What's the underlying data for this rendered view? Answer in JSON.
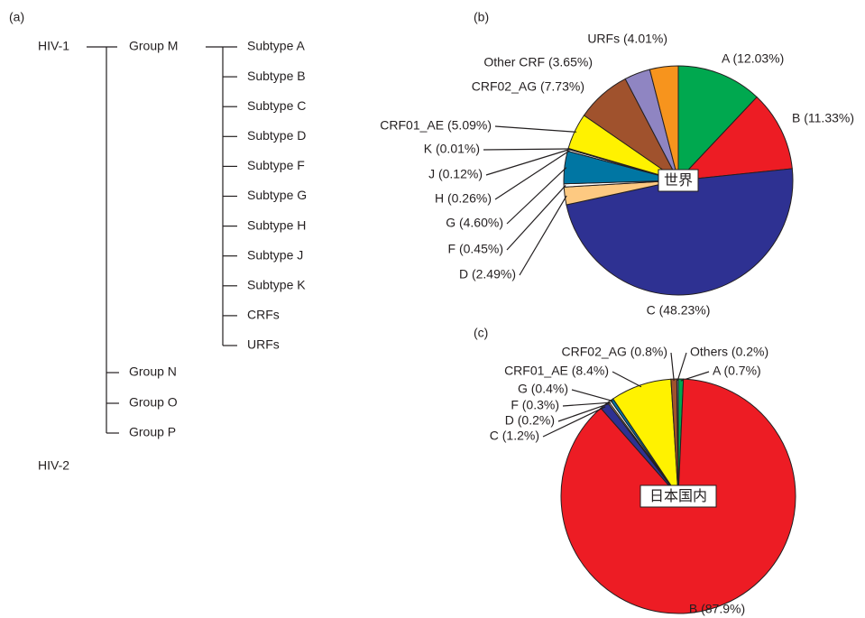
{
  "panel_a": {
    "label": "(a)",
    "tree": {
      "root": "HIV-1",
      "groups": [
        {
          "name": "Group M",
          "children": [
            "Subtype A",
            "Subtype B",
            "Subtype C",
            "Subtype D",
            "Subtype F",
            "Subtype G",
            "Subtype H",
            "Subtype J",
            "Subtype K",
            "CRFs",
            "URFs"
          ]
        },
        {
          "name": "Group N"
        },
        {
          "name": "Group O"
        },
        {
          "name": "Group P"
        }
      ],
      "other": "HIV-2"
    }
  },
  "chart_data": [
    {
      "type": "pie",
      "panel_label": "(b)",
      "center_label": "世界",
      "values": [
        12.03,
        11.33,
        48.23,
        2.49,
        0.45,
        4.6,
        0.26,
        0.12,
        0.01,
        5.09,
        7.73,
        3.65,
        4.01
      ],
      "value_labels": [
        "A (12.03%)",
        "B (11.33%)",
        "C (48.23%)",
        "D (2.49%)",
        "F (0.45%)",
        "G (4.60%)",
        "H (0.26%)",
        "J (0.12%)",
        "K (0.01%)",
        "CRF01_AE (5.09%)",
        "CRF02_AG (7.73%)",
        "Other CRF (3.65%)",
        "URFs (4.01%)"
      ],
      "colors": [
        "#00a84f",
        "#ed1c24",
        "#2e3192",
        "#fdc981",
        "#ffffff",
        "#0076a3",
        "#ffffff",
        "#ffffff",
        "#ffffff",
        "#fff200",
        "#a0522d",
        "#8f85c2",
        "#f7941d"
      ]
    },
    {
      "type": "pie",
      "panel_label": "(c)",
      "center_label": "日本国内",
      "values": [
        0.7,
        87.9,
        1.2,
        0.2,
        0.3,
        0.4,
        8.4,
        0.8,
        0.2
      ],
      "value_labels": [
        "A (0.7%)",
        "B (87.9%)",
        "C (1.2%)",
        "D (0.2%)",
        "F (0.3%)",
        "G (0.4%)",
        "CRF01_AE (8.4%)",
        "CRF02_AG (0.8%)",
        "Others (0.2%)"
      ],
      "colors": [
        "#00a84f",
        "#ed1c24",
        "#2e3192",
        "#fdc981",
        "#ffffff",
        "#0076a3",
        "#fff200",
        "#a0522d",
        "#8f85c2"
      ]
    }
  ]
}
